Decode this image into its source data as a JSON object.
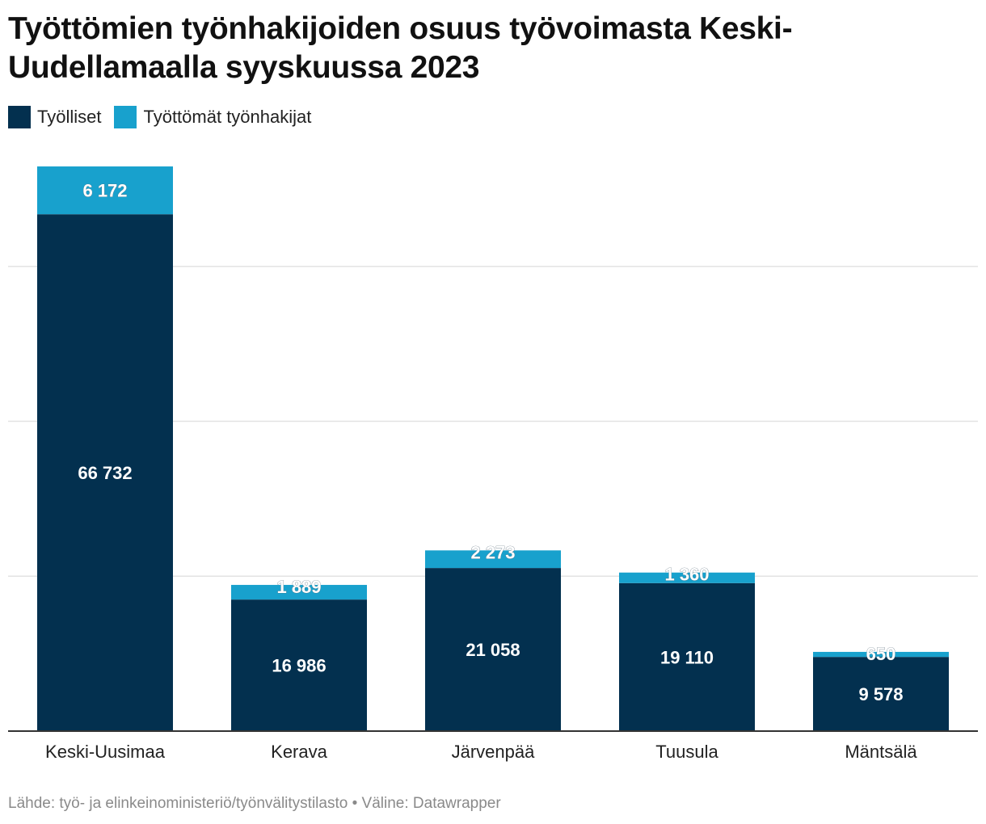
{
  "header": {
    "title": "Työttömien työnhakijoiden osuus työvoimasta Keski-Uudellamaalla syyskuussa 2023"
  },
  "legend": {
    "items": [
      {
        "label": "Työlliset",
        "color": "#03304f"
      },
      {
        "label": "Työttömät työnhakijat",
        "color": "#18a1cd"
      }
    ]
  },
  "chart_data": {
    "type": "bar",
    "stacked": true,
    "title": "Työttömien työnhakijoiden osuus työvoimasta Keski-Uudellamaalla syyskuussa 2023",
    "categories": [
      "Keski-Uusimaa",
      "Kerava",
      "Järvenpää",
      "Tuusula",
      "Mäntsälä"
    ],
    "series": [
      {
        "name": "Työlliset",
        "color": "#03304f",
        "values": [
          66732,
          16986,
          21058,
          19110,
          9578
        ],
        "labels": [
          "66 732",
          "16 986",
          "21 058",
          "19 110",
          "9 578"
        ]
      },
      {
        "name": "Työttömät työnhakijat",
        "color": "#18a1cd",
        "values": [
          6172,
          1889,
          2273,
          1360,
          650
        ],
        "labels": [
          "6 172",
          "1 889",
          "2 273",
          "1 360",
          "650"
        ]
      }
    ],
    "ylim": [
      0,
      80000
    ],
    "gridlines": [
      20000,
      40000,
      60000
    ],
    "xlabel": "",
    "ylabel": "",
    "legend_position": "top-left"
  },
  "footer": {
    "source": "Lähde: työ- ja elinkeinoministeriö/työnvälitystilasto • Väline: Datawrapper"
  }
}
